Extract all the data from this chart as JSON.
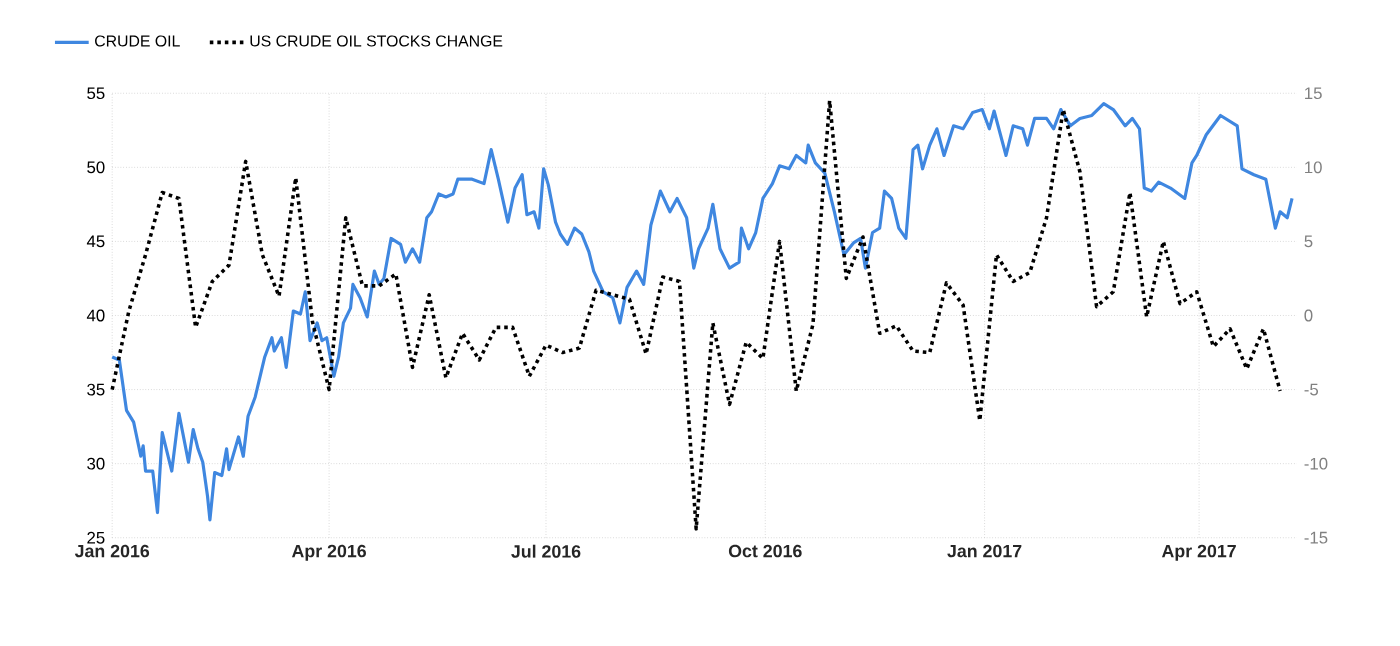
{
  "chart_data": {
    "type": "line",
    "xlim": [
      "2016-01-01",
      "2017-05-12"
    ],
    "xticks": [
      {
        "value": "2016-01-01",
        "label": "Jan 2016"
      },
      {
        "value": "2016-04-01",
        "label": "Apr 2016"
      },
      {
        "value": "2016-07-01",
        "label": "Jul 2016"
      },
      {
        "value": "2016-10-01",
        "label": "Oct 2016"
      },
      {
        "value": "2017-01-01",
        "label": "Jan 2017"
      },
      {
        "value": "2017-04-01",
        "label": "Apr 2017"
      }
    ],
    "ylim": [
      25,
      55
    ],
    "yticks": [
      25,
      30,
      35,
      40,
      45,
      50,
      55
    ],
    "y2lim": [
      -15,
      15
    ],
    "y2ticks": [
      -15,
      -10,
      -5,
      0,
      5,
      10,
      15
    ],
    "grid": true,
    "legend": "top left",
    "series": [
      {
        "name": "CRUDE OIL",
        "color": "#3f87e0",
        "line_style": "solid",
        "x": [
          "2016-01-01",
          "2016-01-04",
          "2016-01-07",
          "2016-01-10",
          "2016-01-13",
          "2016-01-14",
          "2016-01-15",
          "2016-01-18",
          "2016-01-20",
          "2016-01-22",
          "2016-01-26",
          "2016-01-29",
          "2016-02-02",
          "2016-02-04",
          "2016-02-06",
          "2016-02-08",
          "2016-02-10",
          "2016-02-11",
          "2016-02-13",
          "2016-02-16",
          "2016-02-18",
          "2016-02-19",
          "2016-02-23",
          "2016-02-25",
          "2016-02-27",
          "2016-03-01",
          "2016-03-05",
          "2016-03-08",
          "2016-03-09",
          "2016-03-12",
          "2016-03-14",
          "2016-03-17",
          "2016-03-20",
          "2016-03-22",
          "2016-03-24",
          "2016-03-27",
          "2016-03-29",
          "2016-03-31",
          "2016-04-03",
          "2016-04-05",
          "2016-04-07",
          "2016-04-10",
          "2016-04-11",
          "2016-04-14",
          "2016-04-17",
          "2016-04-20",
          "2016-04-22",
          "2016-04-24",
          "2016-04-27",
          "2016-05-01",
          "2016-05-03",
          "2016-05-06",
          "2016-05-09",
          "2016-05-12",
          "2016-05-14",
          "2016-05-17",
          "2016-05-20",
          "2016-05-23",
          "2016-05-25",
          "2016-05-31",
          "2016-06-05",
          "2016-06-08",
          "2016-06-11",
          "2016-06-15",
          "2016-06-18",
          "2016-06-21",
          "2016-06-23",
          "2016-06-26",
          "2016-06-28",
          "2016-06-30",
          "2016-07-02",
          "2016-07-05",
          "2016-07-07",
          "2016-07-10",
          "2016-07-13",
          "2016-07-16",
          "2016-07-19",
          "2016-07-21",
          "2016-07-25",
          "2016-07-29",
          "2016-08-01",
          "2016-08-04",
          "2016-08-08",
          "2016-08-11",
          "2016-08-14",
          "2016-08-18",
          "2016-08-22",
          "2016-08-25",
          "2016-08-29",
          "2016-09-01",
          "2016-09-03",
          "2016-09-07",
          "2016-09-09",
          "2016-09-12",
          "2016-09-16",
          "2016-09-20",
          "2016-09-21",
          "2016-09-24",
          "2016-09-27",
          "2016-09-30",
          "2016-10-04",
          "2016-10-07",
          "2016-10-11",
          "2016-10-14",
          "2016-10-18",
          "2016-10-19",
          "2016-10-22",
          "2016-10-26",
          "2016-10-30",
          "2016-11-03",
          "2016-11-07",
          "2016-11-10",
          "2016-11-12",
          "2016-11-15",
          "2016-11-18",
          "2016-11-20",
          "2016-11-23",
          "2016-11-26",
          "2016-11-29",
          "2016-12-02",
          "2016-12-04",
          "2016-12-06",
          "2016-12-09",
          "2016-12-12",
          "2016-12-15",
          "2016-12-19",
          "2016-12-23",
          "2016-12-27",
          "2016-12-31",
          "2017-01-03",
          "2017-01-05",
          "2017-01-10",
          "2017-01-13",
          "2017-01-17",
          "2017-01-19",
          "2017-01-22",
          "2017-01-27",
          "2017-01-30",
          "2017-02-02",
          "2017-02-06",
          "2017-02-10",
          "2017-02-15",
          "2017-02-20",
          "2017-02-24",
          "2017-03-01",
          "2017-03-04",
          "2017-03-07",
          "2017-03-09",
          "2017-03-12",
          "2017-03-15",
          "2017-03-20",
          "2017-03-26",
          "2017-03-29",
          "2017-03-31",
          "2017-04-04",
          "2017-04-10",
          "2017-04-17",
          "2017-04-19",
          "2017-04-24",
          "2017-04-29",
          "2017-05-03",
          "2017-05-05",
          "2017-05-08",
          "2017-05-10"
        ],
        "values": [
          37.2,
          37.0,
          33.6,
          32.8,
          30.5,
          31.2,
          29.5,
          29.5,
          26.7,
          32.1,
          29.5,
          33.4,
          30.1,
          32.3,
          31.0,
          30.1,
          27.8,
          26.2,
          29.4,
          29.2,
          31.0,
          29.6,
          31.8,
          30.5,
          33.2,
          34.5,
          37.2,
          38.5,
          37.6,
          38.5,
          36.5,
          40.3,
          40.1,
          41.6,
          38.3,
          39.5,
          38.3,
          38.5,
          35.9,
          37.2,
          39.5,
          40.5,
          42.1,
          41.2,
          39.9,
          43.0,
          42.1,
          42.5,
          45.2,
          44.8,
          43.6,
          44.5,
          43.6,
          46.6,
          47.0,
          48.2,
          48.0,
          48.2,
          49.2,
          49.2,
          48.9,
          51.2,
          49.2,
          46.3,
          48.6,
          49.5,
          46.8,
          47.0,
          45.9,
          49.9,
          48.8,
          46.3,
          45.5,
          44.8,
          45.9,
          45.5,
          44.3,
          43.0,
          41.6,
          41.2,
          39.5,
          41.9,
          43.0,
          42.1,
          46.1,
          48.4,
          47.0,
          47.9,
          46.6,
          43.2,
          44.5,
          45.9,
          47.5,
          44.5,
          43.2,
          43.6,
          45.9,
          44.5,
          45.6,
          47.9,
          48.9,
          50.1,
          49.9,
          50.8,
          50.3,
          51.5,
          50.3,
          49.6,
          47.0,
          44.1,
          44.9,
          45.2,
          43.2,
          45.6,
          45.9,
          48.4,
          47.9,
          45.9,
          45.2,
          51.2,
          51.5,
          49.9,
          51.5,
          52.6,
          50.8,
          52.8,
          52.6,
          53.7,
          53.9,
          52.6,
          53.8,
          50.8,
          52.8,
          52.6,
          51.5,
          53.3,
          53.3,
          52.6,
          53.9,
          52.8,
          53.3,
          53.5,
          54.3,
          53.9,
          52.8,
          53.3,
          52.6,
          48.6,
          48.4,
          49.0,
          48.6,
          47.9,
          50.3,
          50.8,
          52.2,
          53.5,
          52.8,
          49.9,
          49.5,
          49.2,
          45.9,
          47.0,
          46.6,
          47.9
        ]
      },
      {
        "name": "US CRUDE OIL STOCKS CHANGE",
        "color": "#000000",
        "line_style": "dotted",
        "axis": "y2",
        "x": [
          "2016-01-01",
          "2016-01-08",
          "2016-01-15",
          "2016-01-22",
          "2016-01-29",
          "2016-02-05",
          "2016-02-12",
          "2016-02-19",
          "2016-02-26",
          "2016-03-04",
          "2016-03-11",
          "2016-03-18",
          "2016-03-25",
          "2016-04-01",
          "2016-04-08",
          "2016-04-15",
          "2016-04-22",
          "2016-04-29",
          "2016-05-06",
          "2016-05-13",
          "2016-05-20",
          "2016-05-27",
          "2016-06-03",
          "2016-06-10",
          "2016-06-17",
          "2016-06-24",
          "2016-07-01",
          "2016-07-08",
          "2016-07-15",
          "2016-07-22",
          "2016-07-29",
          "2016-08-05",
          "2016-08-12",
          "2016-08-19",
          "2016-08-26",
          "2016-09-02",
          "2016-09-09",
          "2016-09-16",
          "2016-09-23",
          "2016-09-30",
          "2016-10-07",
          "2016-10-14",
          "2016-10-21",
          "2016-10-28",
          "2016-11-04",
          "2016-11-11",
          "2016-11-18",
          "2016-11-25",
          "2016-12-02",
          "2016-12-09",
          "2016-12-16",
          "2016-12-23",
          "2016-12-30",
          "2017-01-06",
          "2017-01-13",
          "2017-01-20",
          "2017-01-27",
          "2017-02-03",
          "2017-02-10",
          "2017-02-17",
          "2017-02-24",
          "2017-03-03",
          "2017-03-10",
          "2017-03-17",
          "2017-03-24",
          "2017-03-31",
          "2017-04-07",
          "2017-04-14",
          "2017-04-21",
          "2017-04-28",
          "2017-05-05"
        ],
        "values": [
          -5.0,
          0.3,
          4.1,
          8.3,
          7.9,
          -0.8,
          2.3,
          3.4,
          10.4,
          4.1,
          1.3,
          9.3,
          -0.4,
          -5.0,
          6.6,
          2.0,
          2.0,
          2.8,
          -3.5,
          1.4,
          -4.2,
          -1.2,
          -3.0,
          -0.8,
          -0.8,
          -4.1,
          -2.0,
          -2.5,
          -2.2,
          1.7,
          1.4,
          1.1,
          -2.6,
          2.6,
          2.3,
          -14.4,
          -0.5,
          -6.0,
          -1.8,
          -2.9,
          5.0,
          -5.1,
          -0.6,
          14.5,
          2.5,
          5.3,
          -1.2,
          -0.7,
          -2.4,
          -2.5,
          2.2,
          0.7,
          -7.1,
          4.1,
          2.3,
          2.9,
          6.6,
          13.9,
          9.7,
          0.6,
          1.6,
          8.3,
          -0.1,
          5.0,
          0.8,
          1.6,
          -2.1,
          -0.9,
          -3.6,
          -0.9,
          -5.1
        ]
      }
    ]
  }
}
